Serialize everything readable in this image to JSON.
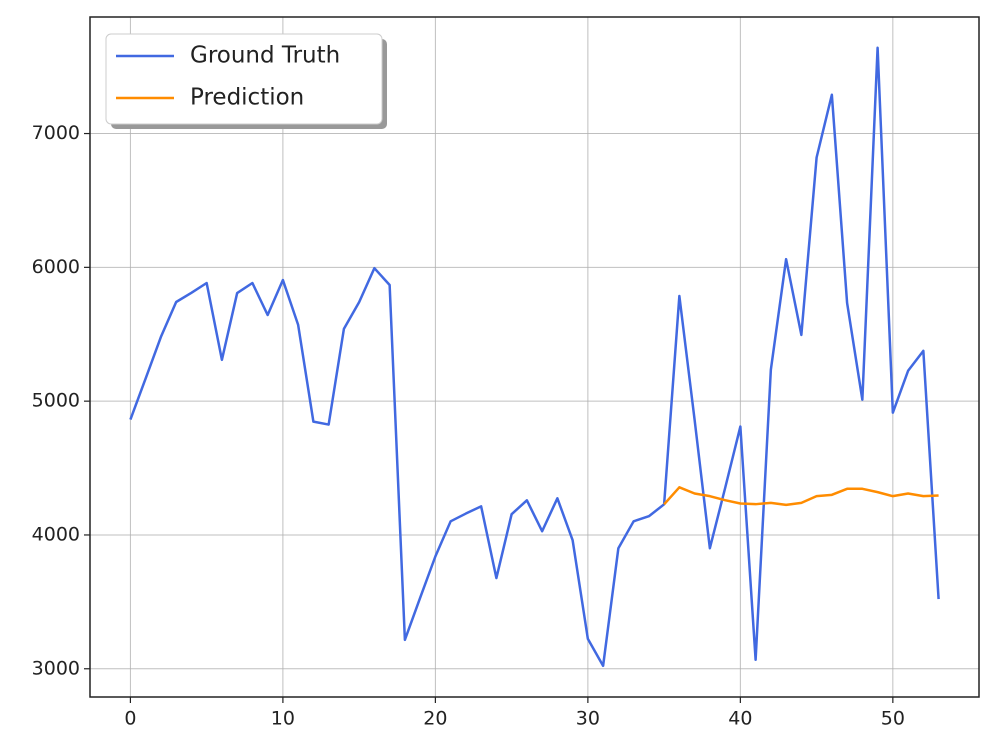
{
  "chart_data": {
    "type": "line",
    "x": [
      0,
      1,
      2,
      3,
      4,
      5,
      6,
      7,
      8,
      9,
      10,
      11,
      12,
      13,
      14,
      15,
      16,
      17,
      18,
      19,
      20,
      21,
      22,
      23,
      24,
      25,
      26,
      27,
      28,
      29,
      30,
      31,
      32,
      33,
      34,
      35,
      36,
      37,
      38,
      39,
      40,
      41,
      42,
      43,
      44,
      45,
      46,
      47,
      48,
      49,
      50,
      51,
      52,
      53
    ],
    "series": [
      {
        "name": "Ground Truth",
        "color": "#4169e1",
        "values": [
          4862,
          5170,
          5480,
          5741,
          5810,
          5883,
          5309,
          5808,
          5883,
          5644,
          5905,
          5570,
          4847,
          4825,
          5540,
          5740,
          5994,
          5868,
          3216,
          3530,
          3840,
          4102,
          4160,
          4214,
          3678,
          4155,
          4259,
          4028,
          4274,
          3961,
          3223,
          3022,
          3901,
          4102,
          4140,
          4229,
          5786,
          4860,
          3901,
          4350,
          4810,
          3067,
          5235,
          6061,
          5495,
          6821,
          7290,
          5734,
          5011,
          7641,
          4914,
          5227,
          5376,
          3521
        ]
      },
      {
        "name": "Prediction",
        "color": "#ff8c00",
        "values": [
          null,
          null,
          null,
          null,
          null,
          null,
          null,
          null,
          null,
          null,
          null,
          null,
          null,
          null,
          null,
          null,
          null,
          null,
          null,
          null,
          null,
          null,
          null,
          null,
          null,
          null,
          null,
          null,
          null,
          null,
          null,
          null,
          null,
          null,
          null,
          4229,
          4356,
          4310,
          4290,
          4260,
          4235,
          4230,
          4240,
          4225,
          4240,
          4290,
          4300,
          4345,
          4345,
          4320,
          4290,
          4310,
          4290,
          4295
        ]
      }
    ],
    "xlim": [
      -2.65,
      55.65
    ],
    "ylim": [
      2789,
      7871
    ],
    "xticks": [
      0,
      10,
      20,
      30,
      40,
      50
    ],
    "yticks": [
      3000,
      4000,
      5000,
      6000,
      7000
    ],
    "grid": true,
    "legend": "upper left"
  }
}
